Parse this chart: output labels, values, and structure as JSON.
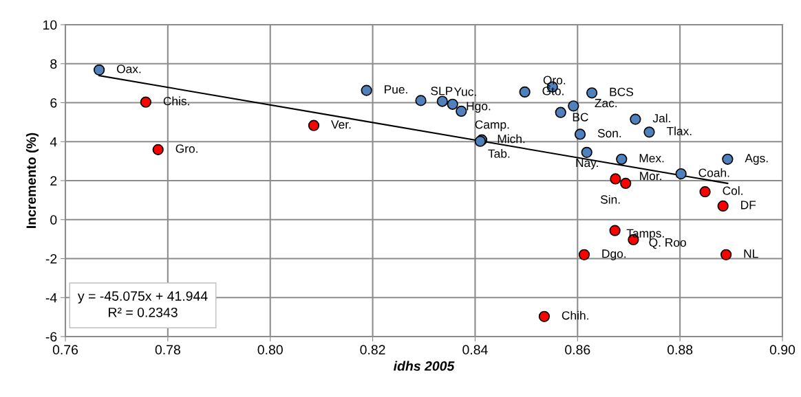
{
  "chart_data": {
    "type": "scatter",
    "xlabel": "idhs 2005",
    "ylabel": "Incremento (%)",
    "xlim": [
      0.76,
      0.9
    ],
    "xticks": [
      0.76,
      0.78,
      {
        "value": 0.8,
        "label": "0.80"
      },
      0.82,
      0.84,
      0.86,
      0.88,
      {
        "value": 0.9,
        "label": "0.90"
      }
    ],
    "ylim": [
      -6,
      10
    ],
    "yticks": [
      -6,
      -4,
      -2,
      0,
      2,
      4,
      6,
      8,
      10
    ],
    "grid": true,
    "series": [
      {
        "color": "#4f81bd",
        "marker": "circle",
        "x": [
          0.7666,
          0.8188,
          0.8294,
          0.8336,
          0.8356,
          0.8373,
          0.8413,
          0.841,
          0.8497,
          0.8551,
          0.8628,
          0.8567,
          0.8592,
          0.8713,
          0.8605,
          0.874,
          0.8618,
          0.8686,
          0.8893,
          0.8802
        ],
        "values": [
          7.68,
          6.63,
          6.11,
          6.07,
          5.92,
          5.56,
          4.09,
          4.02,
          6.55,
          6.81,
          6.5,
          5.5,
          5.83,
          5.15,
          4.38,
          4.49,
          3.45,
          3.1,
          3.1,
          2.35
        ]
      },
      {
        "color": "#ff0000",
        "marker": "circle",
        "x": [
          0.7757,
          0.7781,
          0.8085,
          0.8674,
          0.8694,
          0.8849,
          0.8884,
          0.8673,
          0.8709,
          0.8613,
          0.889,
          0.8535
        ],
        "values": [
          6.03,
          3.59,
          4.83,
          2.09,
          1.86,
          1.43,
          0.7,
          -0.56,
          -1.03,
          -1.8,
          -1.8,
          -4.97
        ]
      },
      {
        "type": "line",
        "color": "#000000",
        "x": [
          0.7666,
          0.8893
        ],
        "values": [
          7.39,
          1.86
        ]
      }
    ],
    "annotations": [
      {
        "text": "Oax.",
        "x": 0.7666,
        "y": 7.68
      },
      {
        "text": "Pue.",
        "x": 0.8188,
        "y": 6.63
      },
      {
        "text": "SLP",
        "x": 0.8294,
        "y": 6.11
      },
      {
        "text": "Yuc.",
        "x": 0.8336,
        "y": 6.07
      },
      {
        "text": "Hgo.",
        "x": 0.8356,
        "y": 5.92
      },
      {
        "text": "Camp.",
        "x": 0.8373,
        "y": 5.56
      },
      {
        "text": "Mich.",
        "x": 0.8413,
        "y": 4.09
      },
      {
        "text": "Tab.",
        "x": 0.841,
        "y": 4.02
      },
      {
        "text": "Gto.",
        "x": 0.8497,
        "y": 6.55
      },
      {
        "text": "Qro.",
        "x": 0.8551,
        "y": 6.81
      },
      {
        "text": "BCS",
        "x": 0.8628,
        "y": 6.5
      },
      {
        "text": "BC",
        "x": 0.8567,
        "y": 5.5
      },
      {
        "text": "Zac.",
        "x": 0.8592,
        "y": 5.83
      },
      {
        "text": "Jal.",
        "x": 0.8713,
        "y": 5.15
      },
      {
        "text": "Son.",
        "x": 0.8605,
        "y": 4.38
      },
      {
        "text": "Tlax.",
        "x": 0.874,
        "y": 4.49
      },
      {
        "text": "Nay.",
        "x": 0.8618,
        "y": 3.45
      },
      {
        "text": "Mex.",
        "x": 0.8686,
        "y": 3.1
      },
      {
        "text": "Ags.",
        "x": 0.8893,
        "y": 3.1
      },
      {
        "text": "Coah.",
        "x": 0.8802,
        "y": 2.35
      },
      {
        "text": "Chis.",
        "x": 0.7757,
        "y": 6.03
      },
      {
        "text": "Gro.",
        "x": 0.7781,
        "y": 3.59
      },
      {
        "text": "Ver.",
        "x": 0.8085,
        "y": 4.83
      },
      {
        "text": "Mor.",
        "x": 0.8694,
        "y": 2.09
      },
      {
        "text": "Sin.",
        "x": 0.8674,
        "y": 1.86
      },
      {
        "text": "Col.",
        "x": 0.8849,
        "y": 1.43
      },
      {
        "text": "DF",
        "x": 0.8884,
        "y": 0.7
      },
      {
        "text": "Tamps.",
        "x": 0.8673,
        "y": -0.56
      },
      {
        "text": "Q. Roo",
        "x": 0.8709,
        "y": -1.03
      },
      {
        "text": "Dgo.",
        "x": 0.8613,
        "y": -1.8
      },
      {
        "text": "NL",
        "x": 0.889,
        "y": -1.8
      },
      {
        "text": "Chih.",
        "x": 0.8535,
        "y": -4.97
      },
      "y = -45.075x + 41.944\nR² = 0.2343"
    ]
  }
}
